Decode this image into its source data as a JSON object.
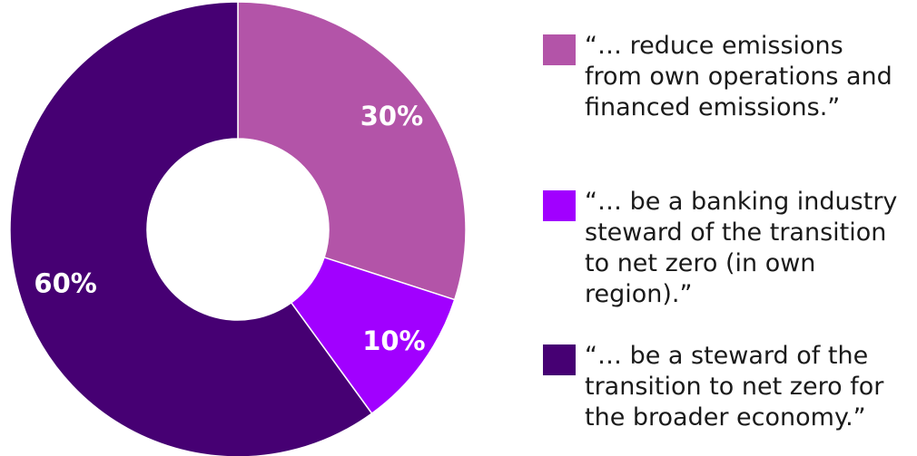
{
  "chart_data": {
    "type": "pie",
    "variant": "donut",
    "categories": [
      "“… reduce emissions from own operations and financed emissions.”",
      "“… be a banking industry steward of the transition to net zero (in own region).”",
      "“… be a steward of the transition to net zero for the broader economy.”"
    ],
    "values": [
      30,
      10,
      60
    ],
    "labels": [
      "30%",
      "10%",
      "60%"
    ],
    "colors": [
      "#b354a8",
      "#a100ff",
      "#460073"
    ],
    "legend_position": "right",
    "title": ""
  },
  "legend": {
    "items": [
      {
        "text": "“… reduce emissions from own operations and financed emissions.”",
        "color": "#b354a8"
      },
      {
        "text": "“… be a banking industry steward of the transition to net zero (in own region).”",
        "color": "#a100ff"
      },
      {
        "text": "“… be a steward of the transition to net zero for the broader economy.”",
        "color": "#460073"
      }
    ]
  }
}
